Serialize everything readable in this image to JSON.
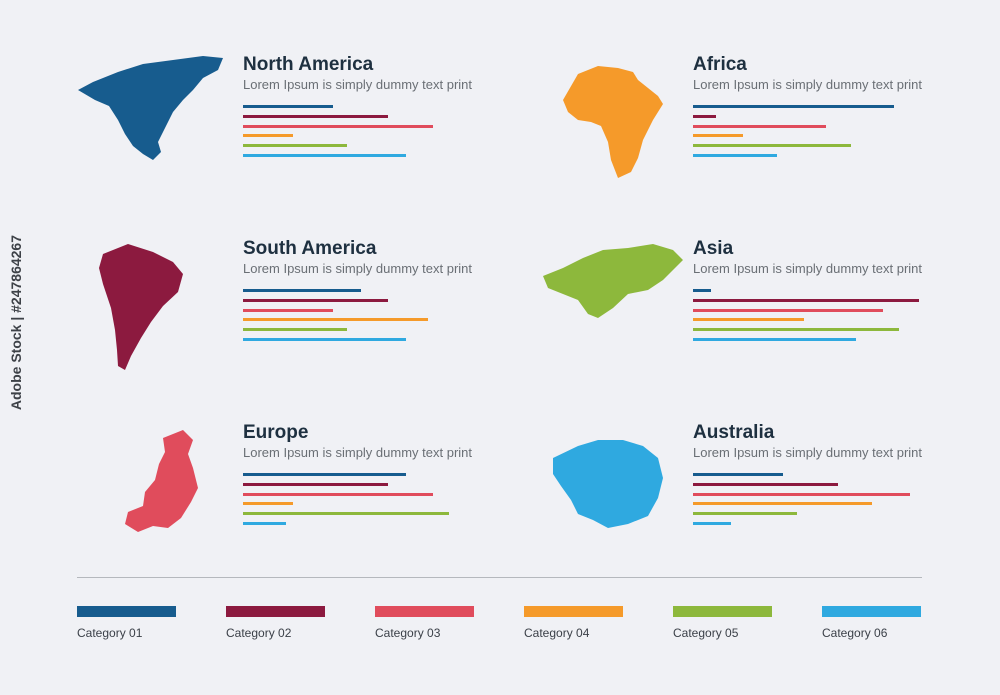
{
  "chart_data": {
    "type": "bar",
    "title": "",
    "categories": [
      "Category 01",
      "Category 02",
      "Category 03",
      "Category 04",
      "Category 05",
      "Category 06"
    ],
    "colors": [
      "#175c8e",
      "#8c1a3f",
      "#e04c5c",
      "#f59a2a",
      "#8db83c",
      "#2fa9e0"
    ],
    "xlim": [
      0,
      100
    ],
    "panels": [
      {
        "region": "North America",
        "subtitle": "Lorem Ipsum is simply dummy text print",
        "map_color": "#175c8e",
        "values": [
          40,
          64,
          84,
          22,
          46,
          72
        ]
      },
      {
        "region": "Africa",
        "subtitle": "Lorem Ipsum is simply dummy text print",
        "map_color": "#f59a2a",
        "values": [
          89,
          10,
          59,
          22,
          70,
          37
        ]
      },
      {
        "region": "South America",
        "subtitle": "Lorem Ipsum is simply dummy text print",
        "map_color": "#8c1a3f",
        "values": [
          52,
          64,
          40,
          82,
          46,
          72
        ]
      },
      {
        "region": "Asia",
        "subtitle": "Lorem Ipsum is simply dummy text print",
        "map_color": "#8db83c",
        "values": [
          8,
          100,
          84,
          49,
          91,
          72
        ]
      },
      {
        "region": "Europe",
        "subtitle": "Lorem Ipsum is simply dummy text print",
        "map_color": "#e04c5c",
        "values": [
          72,
          64,
          84,
          22,
          91,
          19
        ]
      },
      {
        "region": "Australia",
        "subtitle": "Lorem Ipsum is simply dummy text print",
        "map_color": "#2fa9e0",
        "values": [
          40,
          64,
          96,
          79,
          46,
          17
        ]
      }
    ]
  },
  "watermark": "Adobe Stock | #247864267"
}
